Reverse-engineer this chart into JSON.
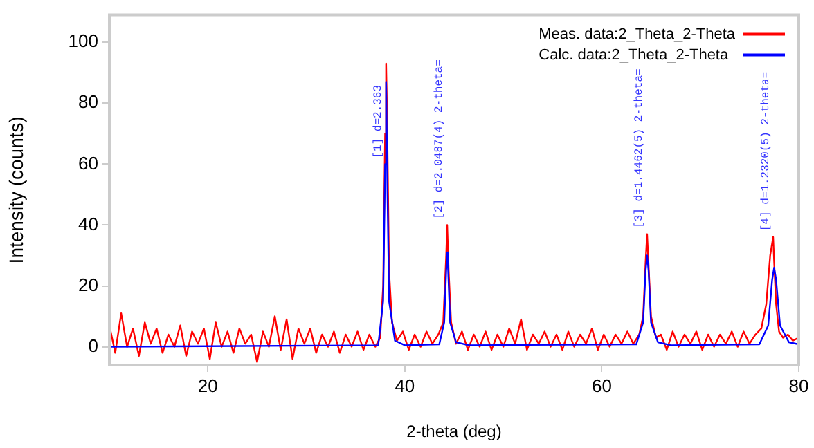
{
  "chart_data": {
    "type": "line",
    "xlabel": "2-theta (deg)",
    "ylabel": "Intensity (counts)",
    "xlim": [
      10,
      80
    ],
    "ylim": [
      -6,
      109
    ],
    "xticks": [
      20,
      40,
      60,
      80
    ],
    "yticks": [
      0,
      20,
      40,
      60,
      80,
      100
    ],
    "grid": false,
    "marker": "none",
    "line_style": "solid",
    "legend": "top right",
    "annotations": [
      {
        "text": "[1] d=2.363",
        "x": 38.1,
        "y": 62
      },
      {
        "text": "[2] d=2.0487(4) 2-theta=",
        "x": 44.3,
        "y": 42
      },
      {
        "text": "[3] d=1.4462(5) 2-theta=",
        "x": 64.6,
        "y": 39
      },
      {
        "text": "[4] d=1.2320(5) 2-theta=",
        "x": 77.5,
        "y": 38
      }
    ],
    "series": [
      {
        "name": "Meas. data:2_Theta_2-Theta",
        "color": "#ff0000",
        "x": [
          10,
          10.6,
          11.2,
          11.8,
          12.4,
          13,
          13.6,
          14.2,
          14.8,
          15.4,
          16,
          16.6,
          17.2,
          17.8,
          18.4,
          19,
          19.6,
          20.2,
          20.8,
          21.4,
          22,
          22.6,
          23.2,
          23.8,
          24.4,
          25,
          25.6,
          26.2,
          26.8,
          27.4,
          28,
          28.6,
          29.2,
          29.8,
          30.4,
          31,
          31.6,
          32.2,
          32.8,
          33.4,
          34,
          34.6,
          35.2,
          35.8,
          36.4,
          37,
          37.5,
          37.8,
          38,
          38.1,
          38.2,
          38.4,
          38.7,
          39.2,
          39.8,
          40.4,
          41,
          41.6,
          42.2,
          42.8,
          43.4,
          43.9,
          44.2,
          44.3,
          44.45,
          44.7,
          45.2,
          45.8,
          46.4,
          47,
          47.6,
          48.2,
          48.8,
          49.4,
          50,
          50.6,
          51.2,
          51.8,
          52.4,
          53,
          53.6,
          54.2,
          54.8,
          55.4,
          56,
          56.6,
          57.2,
          57.8,
          58.4,
          59,
          59.6,
          60.2,
          60.8,
          61.4,
          62,
          62.6,
          63.2,
          63.8,
          64.2,
          64.45,
          64.6,
          64.75,
          65,
          65.5,
          66,
          66.6,
          67.2,
          67.8,
          68.4,
          69,
          69.6,
          70.2,
          70.8,
          71.4,
          72,
          72.6,
          73.2,
          73.8,
          74.4,
          75,
          75.6,
          76.2,
          76.7,
          77.1,
          77.4,
          77.5,
          77.7,
          78,
          78.4,
          78.9,
          79.4,
          80
        ],
        "values": [
          7,
          -2,
          11,
          0,
          6,
          -3,
          8,
          1,
          6,
          -2,
          4,
          0,
          7,
          -3,
          5,
          1,
          6,
          -4,
          8,
          0,
          5,
          -2,
          6,
          1,
          4,
          -5,
          5,
          0,
          10,
          -1,
          9,
          -4,
          6,
          1,
          6,
          -2,
          4,
          0,
          5,
          -2,
          4,
          0,
          5,
          -1,
          4,
          0,
          3,
          20,
          70,
          93,
          75,
          25,
          8,
          2,
          5,
          -1,
          4,
          0,
          5,
          1,
          4,
          8,
          30,
          40,
          25,
          8,
          1,
          5,
          -1,
          4,
          0,
          5,
          -1,
          4,
          0,
          6,
          1,
          9,
          -1,
          4,
          1,
          5,
          0,
          4,
          -1,
          5,
          0,
          4,
          1,
          6,
          -1,
          4,
          0,
          4,
          1,
          5,
          1,
          4,
          10,
          28,
          37,
          27,
          10,
          3,
          4,
          -1,
          5,
          0,
          4,
          1,
          5,
          -1,
          4,
          0,
          4,
          1,
          5,
          0,
          5,
          1,
          4,
          6,
          14,
          30,
          36,
          28,
          14,
          5,
          3,
          4,
          2,
          3
        ]
      },
      {
        "name": "Calc. data:2_Theta_2-Theta",
        "color": "#0000ff",
        "x": [
          10,
          37.3,
          37.8,
          38,
          38.1,
          38.2,
          38.4,
          39,
          40,
          43.5,
          44,
          44.2,
          44.3,
          44.4,
          44.6,
          45.2,
          46.5,
          63.5,
          64.2,
          64.45,
          64.6,
          64.75,
          65,
          65.7,
          67,
          76,
          76.9,
          77.3,
          77.5,
          77.7,
          78.1,
          79,
          80
        ],
        "values": [
          0,
          0.5,
          15,
          60,
          87,
          60,
          15,
          2,
          0.5,
          0.8,
          8,
          25,
          31,
          25,
          8,
          1.5,
          0.5,
          0.8,
          8,
          25,
          30,
          25,
          8,
          1.5,
          0.5,
          0.8,
          7,
          22,
          26,
          22,
          7,
          1.5,
          0.8
        ]
      }
    ]
  }
}
